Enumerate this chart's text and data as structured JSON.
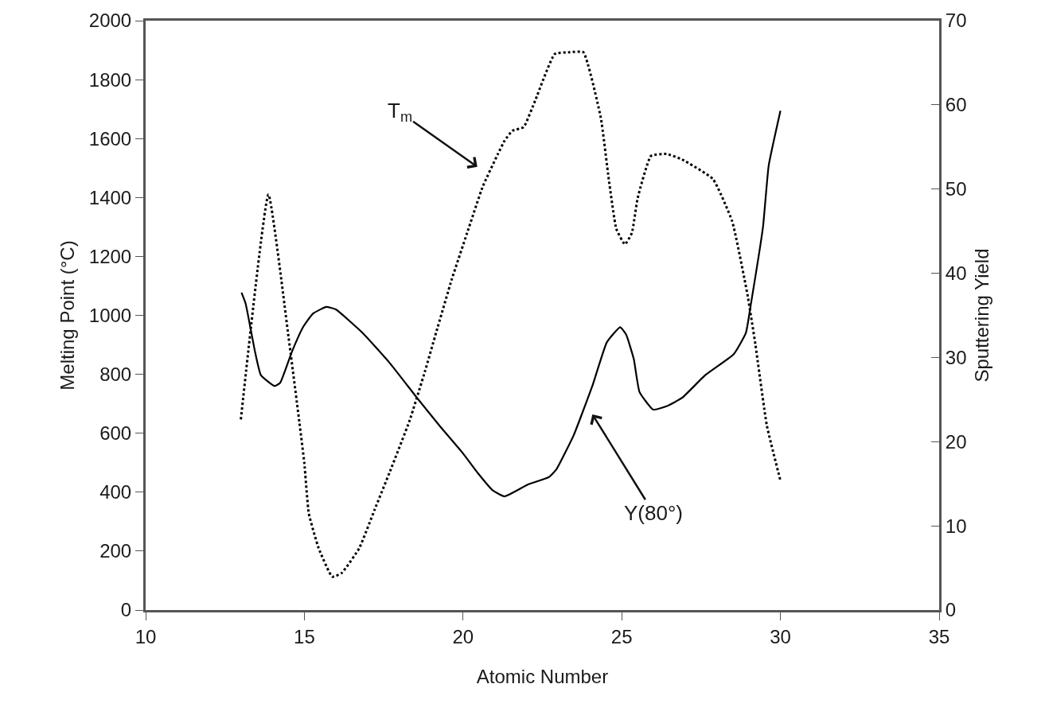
{
  "chart_data": {
    "type": "line",
    "xlabel": "Atomic Number",
    "ylabel": "Melting Point (°C)",
    "y2label": "Sputtering Yield",
    "xlim": [
      10,
      35
    ],
    "xticks": [
      10,
      15,
      20,
      25,
      30,
      35
    ],
    "ylim": [
      0,
      2000
    ],
    "yticks": [
      0,
      200,
      400,
      600,
      800,
      1000,
      1200,
      1400,
      1600,
      1800,
      2000
    ],
    "y2lim": [
      0,
      70
    ],
    "y2ticks": [
      0,
      10,
      20,
      30,
      40,
      50,
      60,
      70
    ],
    "marker": "none",
    "series": [
      {
        "color": "#000000",
        "line_style": "dotted",
        "x": [
          13.0,
          13.87,
          14.5,
          14.84,
          15.0,
          15.14,
          15.45,
          15.88,
          16.18,
          16.73,
          17.22,
          17.7,
          18.31,
          18.8,
          19.15,
          19.65,
          20.13,
          20.62,
          21.1,
          21.31,
          21.55,
          21.91,
          22.28,
          22.89,
          23.37,
          23.79,
          24.34,
          24.59,
          24.83,
          25.1,
          25.32,
          25.5,
          25.92,
          26.41,
          26.9,
          27.87,
          28.48,
          28.96,
          29.21,
          29.57,
          30.0
        ],
        "values": [
          647,
          1410,
          928,
          640,
          498,
          328,
          210,
          113,
          126,
          210,
          342,
          471,
          641,
          810,
          941,
          1124,
          1280,
          1437,
          1548,
          1593,
          1626,
          1639,
          1731,
          1887,
          1893,
          1893,
          1671,
          1463,
          1293,
          1241,
          1280,
          1397,
          1541,
          1548,
          1529,
          1463,
          1319,
          1071,
          902,
          627,
          439
        ]
      },
      {
        "color": "#000000",
        "line_style": "solid",
        "axis": "y2",
        "x": [
          13.02,
          13.15,
          13.45,
          13.63,
          14.06,
          14.24,
          14.6,
          14.96,
          15.27,
          15.69,
          15.99,
          16.84,
          17.7,
          18.55,
          19.28,
          20.0,
          20.46,
          20.94,
          21.31,
          22.04,
          22.71,
          22.94,
          23.49,
          24.09,
          24.53,
          24.95,
          25.14,
          25.38,
          25.56,
          25.99,
          26.41,
          26.9,
          27.63,
          28.53,
          28.91,
          29.08,
          29.45,
          29.63,
          30.0
        ],
        "values": [
          37.7,
          36.4,
          30.6,
          27.9,
          26.6,
          27.0,
          30.6,
          33.6,
          35.2,
          36.0,
          35.7,
          32.9,
          29.3,
          25.2,
          21.8,
          18.6,
          16.3,
          14.2,
          13.5,
          14.9,
          15.8,
          16.7,
          20.8,
          26.8,
          31.8,
          33.6,
          32.7,
          29.8,
          25.9,
          23.8,
          24.2,
          25.2,
          27.9,
          30.4,
          32.9,
          36.6,
          45.5,
          52.8,
          59.3
        ]
      }
    ],
    "annotations": [
      "T$_{m}$",
      "Y(80°)"
    ]
  }
}
